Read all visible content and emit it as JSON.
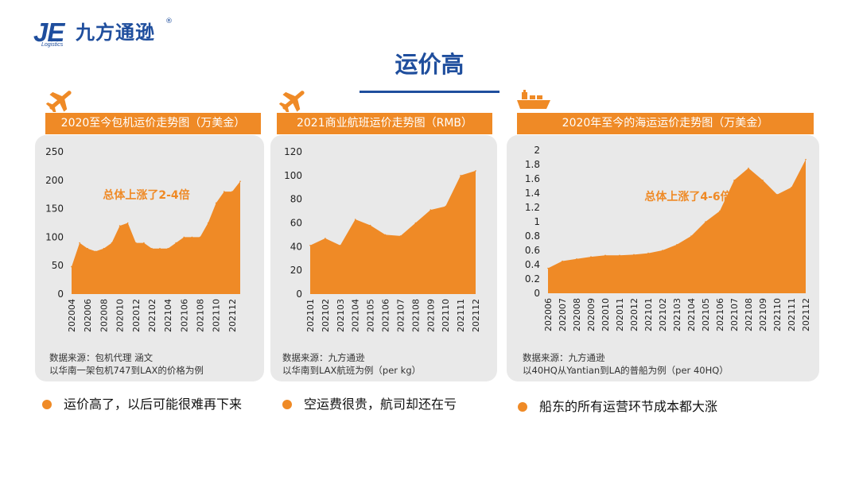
{
  "logo": {
    "mark": "JE",
    "name": "九方通逊",
    "reg": "®",
    "sub": "Logistics"
  },
  "slide": {
    "title": "运价高"
  },
  "colors": {
    "accent": "#ef8a26",
    "brand": "#1f4e9d",
    "panel": "#e9e9e9"
  },
  "panels": [
    {
      "icon": "airplane-icon",
      "header": "2020至今包机运价走势图（万美金）",
      "source_line1": "数据来源：包机代理 涵文",
      "source_line2": "以华南一架包机747到LAX的价格为例"
    },
    {
      "icon": "airplane-icon",
      "header": "2021商业航班运价走势图（RMB）",
      "source_line1": "数据来源：九方通逊",
      "source_line2": "以华南到LAX航班为例（per kg）"
    },
    {
      "icon": "cargo-ship-icon",
      "header": "2020年至今的海运运价走势图（万美金）",
      "source_line1": "数据来源：九方通逊",
      "source_line2": "以40HQ从Yantian到LA的普船为例（per 40HQ）"
    }
  ],
  "bullets": [
    "运价高了，以后可能很难再下来",
    "空运费很贵，航司却还在亏",
    "船东的所有运营环节成本都大涨"
  ],
  "chart_data": [
    {
      "type": "area",
      "title": "2020至今包机运价走势图（万美金）",
      "x": [
        "202004",
        "202005",
        "202006",
        "202007",
        "202008",
        "202009",
        "202010",
        "202011",
        "202012",
        "202101",
        "202102",
        "202103",
        "202104",
        "202105",
        "202106",
        "202107",
        "202108",
        "202109",
        "202110",
        "202111",
        "202112",
        "202201"
      ],
      "x_tick_labels": [
        "202004",
        "202006",
        "202008",
        "202010",
        "202012",
        "202102",
        "202104",
        "202106",
        "202108",
        "202110",
        "202112"
      ],
      "values": [
        48,
        90,
        80,
        75,
        80,
        90,
        120,
        125,
        90,
        90,
        80,
        80,
        80,
        90,
        100,
        100,
        100,
        125,
        160,
        180,
        180,
        198
      ],
      "y_ticks": [
        0,
        50,
        100,
        150,
        200,
        250
      ],
      "ylim": [
        0,
        250
      ],
      "annotation": "总体上涨了2-4倍",
      "grid": false,
      "color": "#ef8a26"
    },
    {
      "type": "area",
      "title": "2021商业航班运价走势图（RMB）",
      "x": [
        "202101",
        "202102",
        "202103",
        "202104",
        "202105",
        "202106",
        "202107",
        "202108",
        "202109",
        "202110",
        "202111",
        "202112"
      ],
      "x_tick_labels": [
        "202101",
        "202102",
        "202103",
        "202104",
        "202105",
        "202106",
        "202107",
        "202108",
        "202109",
        "202110",
        "202111",
        "202112"
      ],
      "values": [
        41,
        47,
        41,
        63,
        58,
        50,
        49,
        60,
        71,
        74,
        100,
        104
      ],
      "y_ticks": [
        0,
        20,
        40,
        60,
        80,
        100,
        120
      ],
      "ylim": [
        0,
        120
      ],
      "grid": false,
      "color": "#ef8a26"
    },
    {
      "type": "area",
      "title": "2020年至今的海运运价走势图（万美金）",
      "x": [
        "202006",
        "202007",
        "202008",
        "202009",
        "202010",
        "202011",
        "202012",
        "202101",
        "202102",
        "202103",
        "202104",
        "202105",
        "202106",
        "202107",
        "202108",
        "202109",
        "202110",
        "202111",
        "202112"
      ],
      "x_tick_labels": [
        "202006",
        "202007",
        "202008",
        "202009",
        "202010",
        "202011",
        "202012",
        "202101",
        "202102",
        "202103",
        "202104",
        "202105",
        "202106",
        "202107",
        "202108",
        "202109",
        "202110",
        "202111",
        "202112"
      ],
      "values": [
        0.35,
        0.45,
        0.48,
        0.51,
        0.53,
        0.53,
        0.54,
        0.56,
        0.6,
        0.68,
        0.8,
        1.0,
        1.15,
        1.58,
        1.75,
        1.58,
        1.38,
        1.48,
        1.87
      ],
      "y_ticks": [
        0,
        0.2,
        0.4,
        0.6,
        0.8,
        1,
        1.2,
        1.4,
        1.6,
        1.8,
        2
      ],
      "ylim": [
        0,
        2
      ],
      "annotation": "总体上涨了4-6倍",
      "grid": false,
      "color": "#ef8a26"
    }
  ]
}
